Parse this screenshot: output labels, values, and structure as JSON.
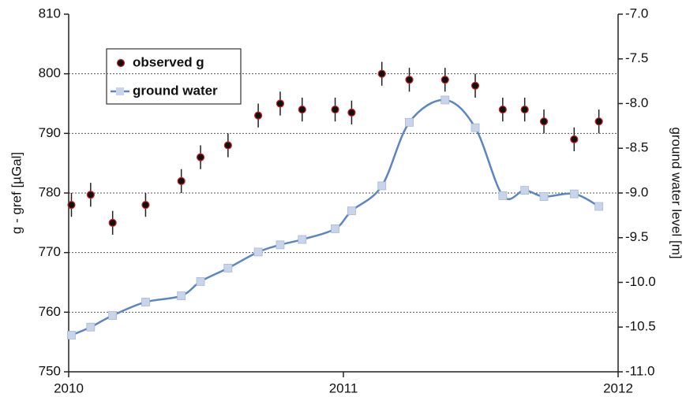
{
  "chart_data": {
    "type": "scatter_line",
    "ylabel": "g - gref [µGal]",
    "y2label": "ground water level [m]",
    "xlim": [
      2010,
      2012
    ],
    "xticks": [
      2010,
      2011,
      2012
    ],
    "ylim": [
      750,
      810
    ],
    "yticks": [
      750,
      760,
      770,
      780,
      790,
      800,
      810
    ],
    "y2lim": [
      -11,
      -7
    ],
    "y2ticks": [
      {
        "value": -11,
        "label": "-11.0"
      },
      -10.5,
      {
        "value": -10,
        "label": "-10.0"
      },
      -9.5,
      {
        "value": -9,
        "label": "-9.0"
      },
      -8.5,
      {
        "value": -8,
        "label": "-8.0"
      },
      -7.5,
      {
        "value": -7,
        "label": "-7.0"
      }
    ],
    "grid": true,
    "legend": "upper left",
    "series": [
      {
        "name": "observed g",
        "type": "scatter",
        "color": "#111111",
        "edgecolor": "#cc2222",
        "x": [
          2010.01,
          2010.08,
          2010.16,
          2010.28,
          2010.41,
          2010.48,
          2010.58,
          2010.69,
          2010.77,
          2010.85,
          2010.97,
          2011.03,
          2011.14,
          2011.24,
          2011.37,
          2011.48,
          2011.58,
          2011.66,
          2011.73,
          2011.84,
          2011.93
        ],
        "values": [
          778,
          779.7,
          775,
          778,
          782,
          786,
          788,
          793,
          795,
          794,
          794,
          793.5,
          800,
          799,
          799,
          798,
          794,
          794,
          792,
          789,
          792
        ],
        "errors": [
          2,
          2,
          2,
          2,
          2,
          2,
          2,
          2,
          2,
          2,
          2,
          2,
          2,
          2,
          2,
          2,
          2,
          2,
          2,
          2,
          2
        ]
      },
      {
        "name": "ground water",
        "type": "line",
        "axis": "y2",
        "color": "#5b86c0",
        "markercolor": "#c8d4ea",
        "x": [
          2010.01,
          2010.08,
          2010.16,
          2010.28,
          2010.41,
          2010.48,
          2010.58,
          2010.69,
          2010.77,
          2010.85,
          2010.97,
          2011.03,
          2011.14,
          2011.24,
          2011.37,
          2011.48,
          2011.58,
          2011.66,
          2011.73,
          2011.84,
          2011.93
        ],
        "values": [
          -10.59,
          -10.5,
          -10.37,
          -10.22,
          -10.15,
          -9.99,
          -9.84,
          -9.66,
          -9.58,
          -9.52,
          -9.4,
          -9.2,
          -8.92,
          -8.21,
          -7.96,
          -8.27,
          -9.03,
          -8.97,
          -9.04,
          -9.01,
          -9.15
        ]
      }
    ]
  }
}
